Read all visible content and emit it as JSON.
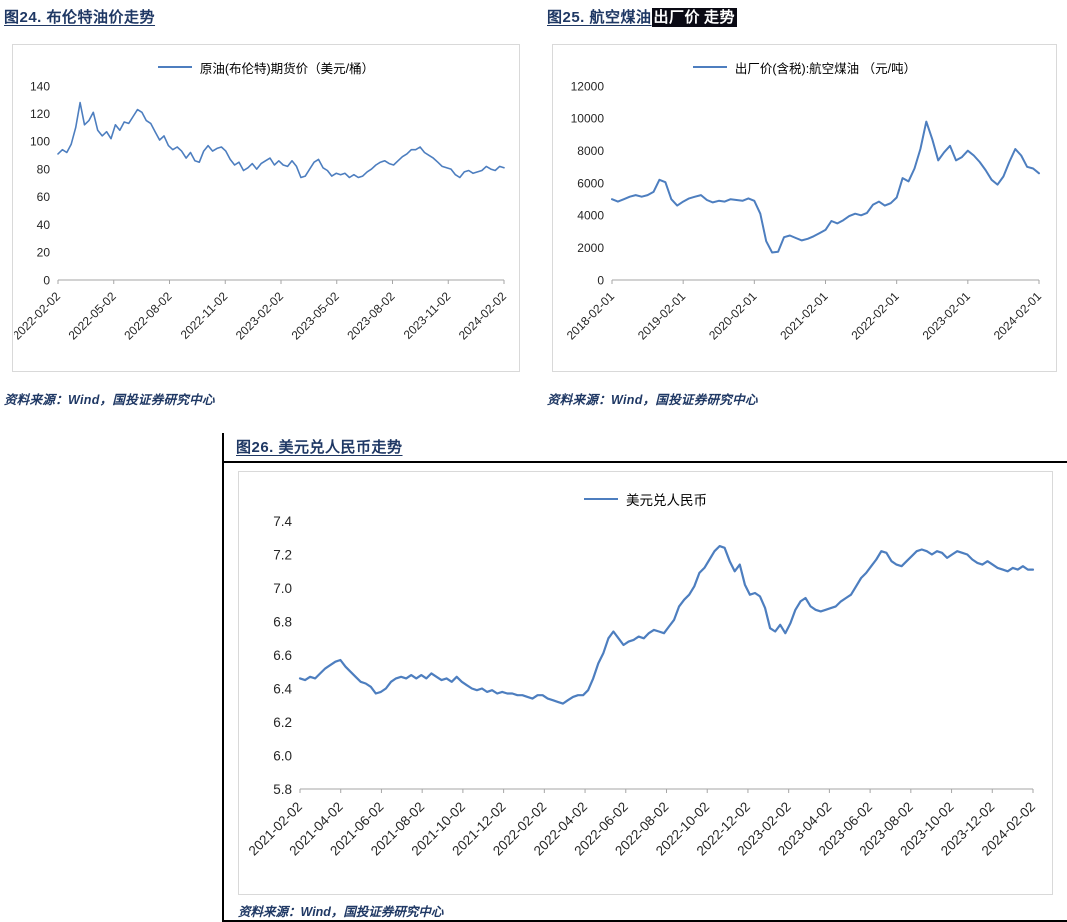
{
  "colors": {
    "line": "#4d7ebf",
    "title": "#1f3864",
    "highlight_bg": "#0a0a14",
    "highlight_fg": "#ffffff",
    "axis": "#a6a6a6"
  },
  "figures": {
    "fig24": {
      "title": "图24. 布伦特油价走势",
      "legend": "原油(布伦特)期货价（美元/桶）",
      "source": "资料来源：Wind，国投证券研究中心"
    },
    "fig25": {
      "title_prefix": "图25. 航空煤油",
      "title_hl1": "出厂价",
      "title_hl2": "走势",
      "legend": "出厂价(含税):航空煤油 （元/吨）",
      "source": "资料来源：Wind，国投证券研究中心"
    },
    "fig26": {
      "title": "图26. 美元兑人民币走势",
      "legend": "美元兑人民币",
      "source": "资料来源：Wind，国投证券研究中心"
    }
  },
  "chart_data": [
    {
      "type": "line",
      "title": "图24. 布伦特油价走势",
      "legend": "原油(布伦特)期货价（美元/桶）",
      "line_color": "#4d7ebf",
      "ylim": [
        0,
        140
      ],
      "yticks": [
        0,
        20,
        40,
        60,
        80,
        100,
        120,
        140
      ],
      "xticks": [
        "2022-02-02",
        "2022-05-02",
        "2022-08-02",
        "2022-11-02",
        "2023-02-02",
        "2023-05-02",
        "2023-08-02",
        "2023-11-02",
        "2024-02-02"
      ],
      "grid": false,
      "legend_position": "top",
      "values": [
        91,
        94,
        92,
        98,
        110,
        128,
        112,
        115,
        121,
        108,
        104,
        107,
        102,
        112,
        108,
        114,
        113,
        118,
        123,
        121,
        115,
        113,
        107,
        101,
        104,
        97,
        94,
        96,
        93,
        88,
        92,
        86,
        85,
        93,
        97,
        93,
        95,
        96,
        93,
        87,
        83,
        85,
        79,
        81,
        84,
        80,
        84,
        86,
        88,
        83,
        86,
        83,
        82,
        86,
        82,
        74,
        75,
        80,
        85,
        87,
        81,
        79,
        75,
        77,
        76,
        77,
        74,
        76,
        74,
        75,
        78,
        80,
        83,
        85,
        86,
        84,
        83,
        86,
        89,
        91,
        94,
        94,
        96,
        92,
        90,
        88,
        85,
        82,
        81,
        80,
        76,
        74,
        78,
        79,
        77,
        78,
        79,
        82,
        80,
        79,
        82,
        81
      ]
    },
    {
      "type": "line",
      "title": "图25. 航空煤油出厂价走势",
      "legend": "出厂价(含税):航空煤油 （元/吨）",
      "line_color": "#4d7ebf",
      "ylim": [
        0,
        12000
      ],
      "yticks": [
        0,
        2000,
        4000,
        6000,
        8000,
        10000,
        12000
      ],
      "xticks": [
        "2018-02-01",
        "2019-02-01",
        "2020-02-01",
        "2021-02-01",
        "2022-02-01",
        "2023-02-01",
        "2024-02-01"
      ],
      "grid": false,
      "legend_position": "top",
      "values": [
        5000,
        4850,
        5000,
        5150,
        5250,
        5150,
        5250,
        5450,
        6200,
        6050,
        5000,
        4600,
        4850,
        5050,
        5150,
        5250,
        4950,
        4800,
        4900,
        4850,
        5000,
        4950,
        4900,
        5050,
        4900,
        4100,
        2400,
        1700,
        1750,
        2650,
        2750,
        2600,
        2450,
        2550,
        2700,
        2900,
        3100,
        3650,
        3500,
        3700,
        3950,
        4100,
        4000,
        4150,
        4650,
        4850,
        4600,
        4750,
        5100,
        6300,
        6100,
        6900,
        8100,
        9800,
        8700,
        7400,
        7900,
        8300,
        7400,
        7600,
        8000,
        7700,
        7300,
        6800,
        6200,
        5900,
        6400,
        7300,
        8100,
        7700,
        7000,
        6900,
        6600
      ]
    },
    {
      "type": "line",
      "title": "图26. 美元兑人民币走势",
      "legend": "美元兑人民币",
      "line_color": "#4d7ebf",
      "ylim": [
        5.8,
        7.4
      ],
      "yticks": [
        5.8,
        6.0,
        6.2,
        6.4,
        6.6,
        6.8,
        7.0,
        7.2,
        7.4
      ],
      "ytick_labels": [
        "5.8",
        "6.0",
        "6.2",
        "6.4",
        "6.6",
        "6.8",
        "7.0",
        "7.2",
        "7.4"
      ],
      "xticks": [
        "2021-02-02",
        "2021-04-02",
        "2021-06-02",
        "2021-08-02",
        "2021-10-02",
        "2021-12-02",
        "2022-02-02",
        "2022-04-02",
        "2022-06-02",
        "2022-08-02",
        "2022-10-02",
        "2022-12-02",
        "2023-02-02",
        "2023-04-02",
        "2023-06-02",
        "2023-08-02",
        "2023-10-02",
        "2023-12-02",
        "2024-02-02"
      ],
      "grid": false,
      "legend_position": "top",
      "values": [
        6.46,
        6.45,
        6.47,
        6.46,
        6.49,
        6.52,
        6.54,
        6.56,
        6.57,
        6.53,
        6.5,
        6.47,
        6.44,
        6.43,
        6.41,
        6.37,
        6.38,
        6.4,
        6.44,
        6.46,
        6.47,
        6.46,
        6.48,
        6.46,
        6.48,
        6.46,
        6.49,
        6.47,
        6.45,
        6.46,
        6.44,
        6.47,
        6.44,
        6.42,
        6.4,
        6.39,
        6.4,
        6.38,
        6.39,
        6.37,
        6.38,
        6.37,
        6.37,
        6.36,
        6.36,
        6.35,
        6.34,
        6.36,
        6.36,
        6.34,
        6.33,
        6.32,
        6.31,
        6.33,
        6.35,
        6.36,
        6.36,
        6.39,
        6.46,
        6.55,
        6.61,
        6.7,
        6.74,
        6.7,
        6.66,
        6.68,
        6.69,
        6.71,
        6.7,
        6.73,
        6.75,
        6.74,
        6.73,
        6.77,
        6.81,
        6.89,
        6.93,
        6.96,
        7.01,
        7.09,
        7.12,
        7.17,
        7.22,
        7.25,
        7.24,
        7.16,
        7.1,
        7.14,
        7.02,
        6.96,
        6.97,
        6.95,
        6.88,
        6.76,
        6.74,
        6.78,
        6.73,
        6.79,
        6.87,
        6.92,
        6.94,
        6.89,
        6.87,
        6.86,
        6.87,
        6.88,
        6.89,
        6.92,
        6.94,
        6.96,
        7.01,
        7.06,
        7.09,
        7.13,
        7.17,
        7.22,
        7.21,
        7.16,
        7.14,
        7.13,
        7.16,
        7.19,
        7.22,
        7.23,
        7.22,
        7.2,
        7.22,
        7.21,
        7.18,
        7.2,
        7.22,
        7.21,
        7.2,
        7.17,
        7.15,
        7.14,
        7.16,
        7.14,
        7.12,
        7.11,
        7.1,
        7.12,
        7.11,
        7.13,
        7.11,
        7.11
      ]
    }
  ]
}
